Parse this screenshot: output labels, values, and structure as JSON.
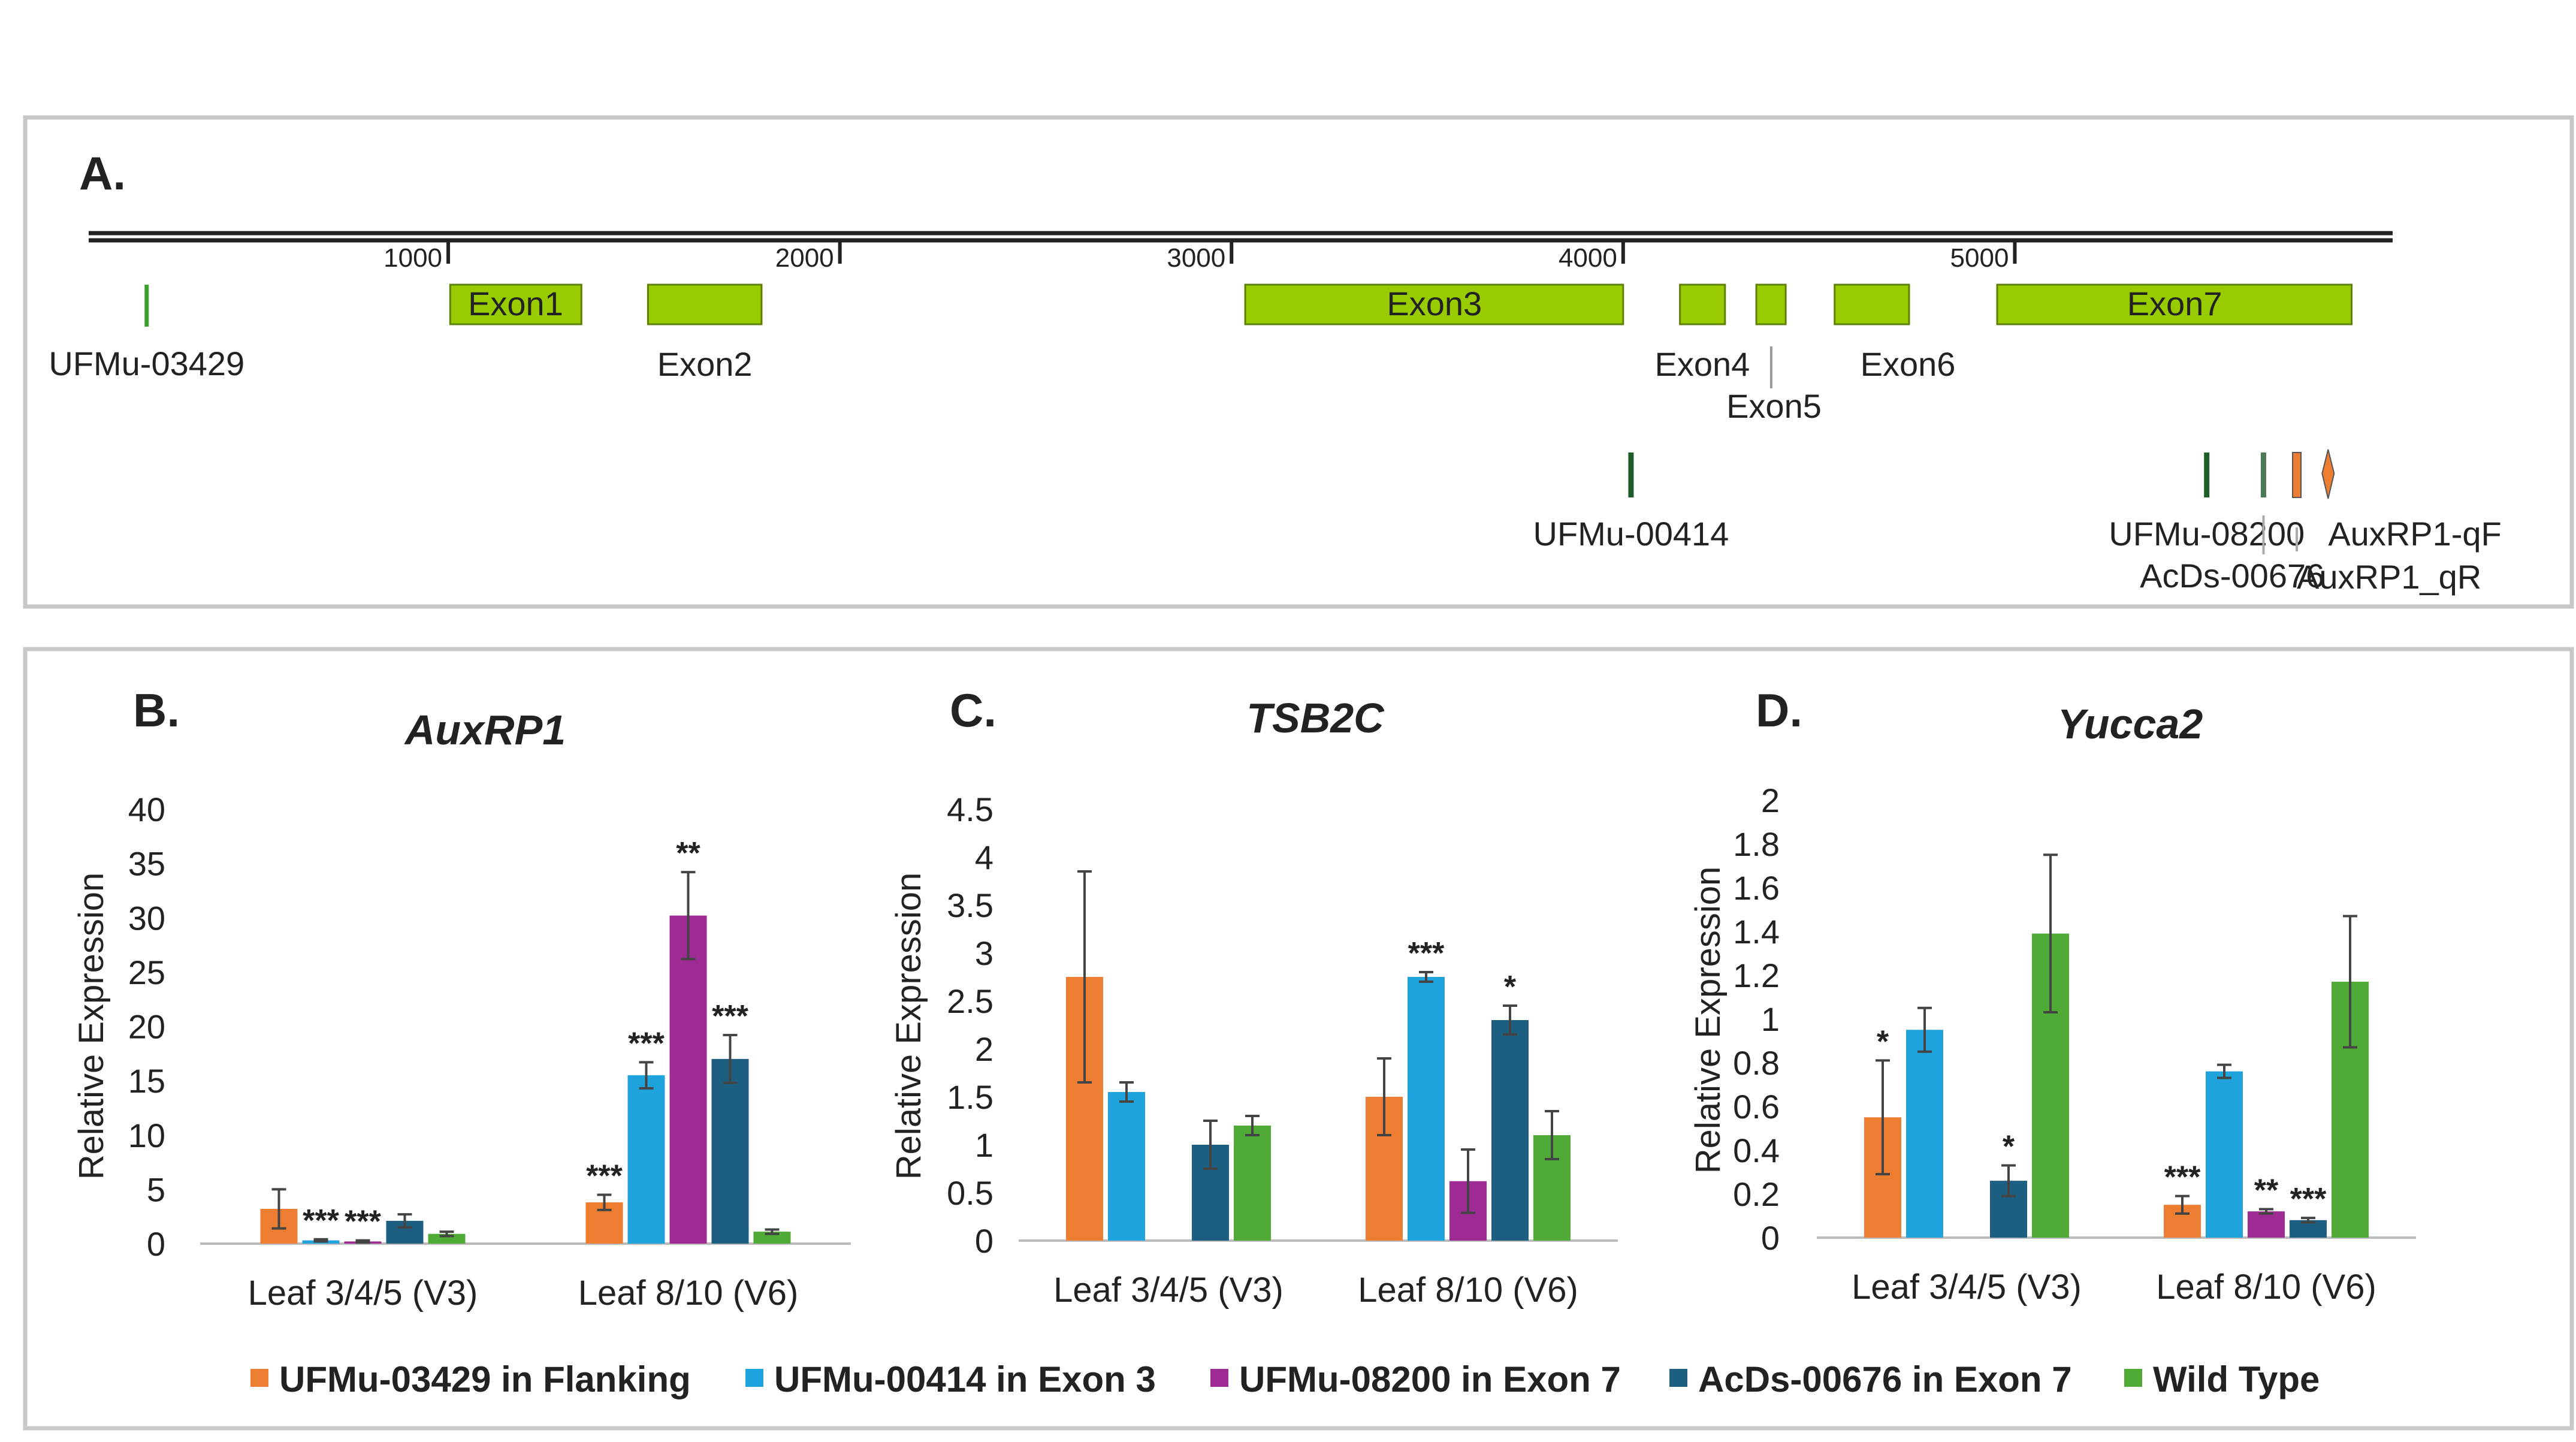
{
  "panel_a": {
    "label": "A.",
    "ruler_ticks": [
      "1000",
      "2000",
      "3000",
      "4000",
      "5000"
    ],
    "exons": [
      {
        "name": "Exon1",
        "label": "Exon1"
      },
      {
        "name": "Exon2",
        "label": "Exon2"
      },
      {
        "name": "Exon3",
        "label": "Exon3"
      },
      {
        "name": "Exon4",
        "label": "Exon4"
      },
      {
        "name": "Exon5",
        "label": "Exon5"
      },
      {
        "name": "Exon6",
        "label": "Exon6"
      },
      {
        "name": "Exon7",
        "label": "Exon7"
      }
    ],
    "insertions": [
      "UFMu-03429",
      "UFMu-00414",
      "UFMu-08200",
      "AcDs-00676"
    ],
    "primers": [
      "AuxRP1-qF",
      "AuxRP1_qR"
    ],
    "colors": {
      "exon": "#99cc00",
      "insertion": "#1e5c2a",
      "primer": "#ed7d31"
    }
  },
  "chart_data": [
    {
      "panel": "B.",
      "type": "bar",
      "title": "AuxRP1",
      "ylabel": "Relative Expression",
      "ylim": [
        0,
        40
      ],
      "yticks": [
        "0",
        "5",
        "10",
        "15",
        "20",
        "25",
        "30",
        "35",
        "40"
      ],
      "categories": [
        "Leaf 3/4/5 (V3)",
        "Leaf 8/10 (V6)"
      ],
      "series": [
        {
          "name": "UFMu-03429 in Flanking",
          "values": [
            3.2,
            3.8
          ],
          "errors": [
            1.8,
            0.7
          ],
          "sig": [
            "",
            "***"
          ]
        },
        {
          "name": "UFMu-00414 in Exon 3",
          "values": [
            0.3,
            15.5
          ],
          "errors": [
            0.1,
            1.2
          ],
          "sig": [
            "***",
            "***"
          ]
        },
        {
          "name": "UFMu-08200 in Exon 7",
          "values": [
            0.2,
            30.2
          ],
          "errors": [
            0.1,
            4.0
          ],
          "sig": [
            "***",
            "**"
          ]
        },
        {
          "name": "AcDs-00676 in Exon 7",
          "values": [
            2.1,
            17.0
          ],
          "errors": [
            0.6,
            2.2
          ],
          "sig": [
            "",
            "***"
          ]
        },
        {
          "name": "Wild Type",
          "values": [
            0.9,
            1.1
          ],
          "errors": [
            0.2,
            0.2
          ],
          "sig": [
            "",
            ""
          ]
        }
      ]
    },
    {
      "panel": "C.",
      "type": "bar",
      "title": "TSB2C",
      "ylabel": "Relative Expression",
      "ylim": [
        0,
        4.5
      ],
      "yticks": [
        "0",
        "0.5",
        "1",
        "1.5",
        "2",
        "2.5",
        "3",
        "3.5",
        "4",
        "4.5"
      ],
      "categories": [
        "Leaf 3/4/5 (V3)",
        "Leaf 8/10 (V6)"
      ],
      "series": [
        {
          "name": "UFMu-03429 in Flanking",
          "values": [
            2.75,
            1.5
          ],
          "errors": [
            1.1,
            0.4
          ],
          "sig": [
            "",
            ""
          ]
        },
        {
          "name": "UFMu-00414 in Exon 3",
          "values": [
            1.55,
            2.75
          ],
          "errors": [
            0.1,
            0.05
          ],
          "sig": [
            "",
            "***"
          ]
        },
        {
          "name": "UFMu-08200 in Exon 7",
          "values": [
            null,
            0.62
          ],
          "errors": [
            null,
            0.33
          ],
          "sig": [
            "",
            ""
          ]
        },
        {
          "name": "AcDs-00676 in Exon 7",
          "values": [
            1.0,
            2.3
          ],
          "errors": [
            0.25,
            0.15
          ],
          "sig": [
            "",
            "*"
          ]
        },
        {
          "name": "Wild Type",
          "values": [
            1.2,
            1.1
          ],
          "errors": [
            0.1,
            0.25
          ],
          "sig": [
            "",
            ""
          ]
        }
      ]
    },
    {
      "panel": "D.",
      "type": "bar",
      "title": "Yucca2",
      "ylabel": "Relative Expression",
      "ylim": [
        0,
        2
      ],
      "yticks": [
        "0",
        "0.2",
        "0.4",
        "0.6",
        "0.8",
        "1",
        "1.2",
        "1.4",
        "1.6",
        "1.8",
        "2"
      ],
      "categories": [
        "Leaf 3/4/5 (V3)",
        "Leaf 8/10 (V6)"
      ],
      "series": [
        {
          "name": "UFMu-03429 in Flanking",
          "values": [
            0.55,
            0.15
          ],
          "errors": [
            0.26,
            0.04
          ],
          "sig": [
            "*",
            "***"
          ]
        },
        {
          "name": "UFMu-00414 in Exon 3",
          "values": [
            0.95,
            0.76
          ],
          "errors": [
            0.1,
            0.03
          ],
          "sig": [
            "",
            ""
          ]
        },
        {
          "name": "UFMu-08200 in Exon 7",
          "values": [
            null,
            0.12
          ],
          "errors": [
            null,
            0.01
          ],
          "sig": [
            "",
            "**"
          ]
        },
        {
          "name": "AcDs-00676 in Exon 7",
          "values": [
            0.26,
            0.08
          ],
          "errors": [
            0.07,
            0.01
          ],
          "sig": [
            "*",
            "***"
          ]
        },
        {
          "name": "Wild Type",
          "values": [
            1.39,
            1.17
          ],
          "errors": [
            0.36,
            0.3
          ],
          "sig": [
            "",
            ""
          ]
        }
      ]
    }
  ],
  "legend": [
    {
      "label": "UFMu-03429 in Flanking",
      "color": "#ed7d31"
    },
    {
      "label": "UFMu-00414 in Exon 3",
      "color": "#1fa3dd"
    },
    {
      "label": "UFMu-08200 in Exon 7",
      "color": "#9e2a94"
    },
    {
      "label": "AcDs-00676 in Exon 7",
      "color": "#1d5f80"
    },
    {
      "label": "Wild Type",
      "color": "#4fab36"
    }
  ]
}
